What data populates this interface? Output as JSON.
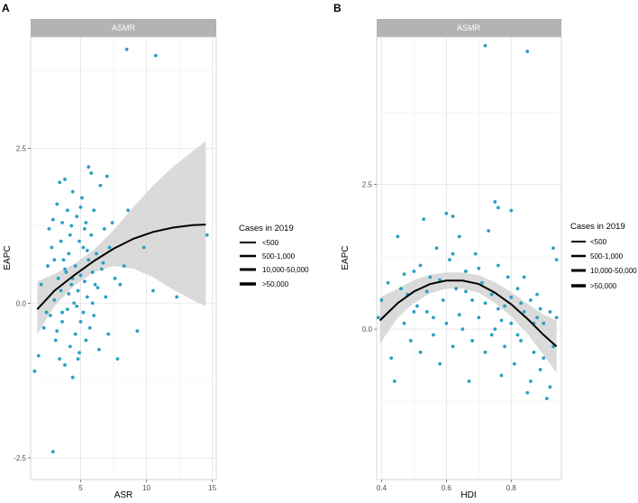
{
  "panels": [
    {
      "letter": "A",
      "strip_title": "ASMR",
      "xlabel": "ASR",
      "ylabel": "EAPC",
      "legend": {
        "title": "Cases in 2019",
        "entries": [
          "<500",
          "500-1,000",
          "10,000-50,000",
          ">50,000"
        ]
      }
    },
    {
      "letter": "B",
      "strip_title": "ASMR",
      "xlabel": "HDI",
      "ylabel": "EAPC",
      "legend": {
        "title": "Cases in 2019",
        "entries": [
          "<500",
          "500-1,000",
          "10,000-50,000",
          ">50,000"
        ]
      }
    }
  ],
  "chart_data": [
    {
      "type": "scatter",
      "title": "ASMR",
      "xlabel": "ASR",
      "ylabel": "EAPC",
      "xlim": [
        1.2,
        15.3
      ],
      "ylim": [
        -2.85,
        4.3
      ],
      "xticks": [
        5,
        10,
        15
      ],
      "yticks": [
        -2.5,
        0,
        2.5
      ],
      "point_color": "#2a9fc4",
      "ribbon_color": "#d4d4d4",
      "line_color": "#000000",
      "points": [
        [
          8.5,
          4.1
        ],
        [
          10.7,
          4.0
        ],
        [
          2.9,
          -2.4
        ],
        [
          14.6,
          1.1
        ],
        [
          12.3,
          0.1
        ],
        [
          1.5,
          -1.1
        ],
        [
          1.8,
          -0.85
        ],
        [
          2.0,
          0.3
        ],
        [
          2.2,
          -0.4
        ],
        [
          2.5,
          0.6
        ],
        [
          2.6,
          1.2
        ],
        [
          2.7,
          -0.2
        ],
        [
          2.8,
          0.9
        ],
        [
          3.0,
          0.05
        ],
        [
          3.1,
          -0.6
        ],
        [
          3.2,
          1.6
        ],
        [
          3.3,
          0.4
        ],
        [
          3.4,
          -0.9
        ],
        [
          3.4,
          1.95
        ],
        [
          3.5,
          0.2
        ],
        [
          3.6,
          -0.3
        ],
        [
          3.6,
          1.3
        ],
        [
          3.7,
          0.7
        ],
        [
          3.8,
          -1.0
        ],
        [
          3.8,
          2.0
        ],
        [
          3.9,
          0.5
        ],
        [
          4.0,
          -0.1
        ],
        [
          4.0,
          1.5
        ],
        [
          4.1,
          0.8
        ],
        [
          4.2,
          -0.7
        ],
        [
          4.2,
          1.1
        ],
        [
          4.3,
          0.3
        ],
        [
          4.4,
          -1.2
        ],
        [
          4.4,
          1.8
        ],
        [
          4.5,
          0.0
        ],
        [
          4.6,
          0.6
        ],
        [
          4.6,
          -0.5
        ],
        [
          4.7,
          1.4
        ],
        [
          4.8,
          0.2
        ],
        [
          4.8,
          -0.9
        ],
        [
          4.9,
          1.0
        ],
        [
          5.0,
          -0.3
        ],
        [
          5.0,
          0.45
        ],
        [
          5.1,
          1.7
        ],
        [
          5.2,
          -0.15
        ],
        [
          5.2,
          0.9
        ],
        [
          5.3,
          0.35
        ],
        [
          5.4,
          -0.6
        ],
        [
          5.4,
          1.3
        ],
        [
          5.5,
          0.1
        ],
        [
          5.6,
          2.2
        ],
        [
          5.6,
          0.7
        ],
        [
          5.7,
          -0.4
        ],
        [
          5.8,
          2.1
        ],
        [
          5.8,
          1.1
        ],
        [
          5.9,
          0.5
        ],
        [
          6.0,
          -0.2
        ],
        [
          6.0,
          1.5
        ],
        [
          6.2,
          0.8
        ],
        [
          6.3,
          0.25
        ],
        [
          6.4,
          -0.75
        ],
        [
          6.5,
          1.9
        ],
        [
          6.6,
          0.55
        ],
        [
          6.8,
          1.2
        ],
        [
          6.9,
          0.1
        ],
        [
          7.0,
          2.05
        ],
        [
          7.1,
          -0.5
        ],
        [
          7.2,
          0.9
        ],
        [
          7.4,
          1.3
        ],
        [
          7.6,
          0.4
        ],
        [
          7.8,
          -0.9
        ],
        [
          8.0,
          0.3
        ],
        [
          8.3,
          0.6
        ],
        [
          8.6,
          1.5
        ],
        [
          9.3,
          -0.45
        ],
        [
          9.8,
          0.9
        ],
        [
          10.5,
          0.2
        ],
        [
          3.0,
          0.7
        ],
        [
          3.5,
          1.0
        ],
        [
          4.1,
          0.15
        ],
        [
          4.7,
          -0.05
        ],
        [
          5.3,
          1.2
        ],
        [
          5.9,
          0.0
        ],
        [
          3.8,
          0.55
        ],
        [
          4.4,
          0.4
        ],
        [
          2.4,
          -0.15
        ],
        [
          3.2,
          -0.45
        ],
        [
          4.9,
          -0.8
        ],
        [
          5.5,
          0.85
        ],
        [
          6.1,
          0.3
        ],
        [
          3.6,
          -0.15
        ],
        [
          4.3,
          1.25
        ],
        [
          5.0,
          1.55
        ],
        [
          2.9,
          1.35
        ],
        [
          6.7,
          0.65
        ]
      ],
      "fit": {
        "x": [
          1.7,
          3,
          4.5,
          6,
          7.5,
          9,
          10.5,
          12,
          13.5,
          14.5
        ],
        "y": [
          -0.1,
          0.2,
          0.45,
          0.68,
          0.88,
          1.04,
          1.15,
          1.22,
          1.26,
          1.27
        ],
        "lower": [
          -0.5,
          -0.05,
          0.28,
          0.5,
          0.6,
          0.56,
          0.42,
          0.22,
          0.05,
          -0.05
        ],
        "upper": [
          0.35,
          0.47,
          0.63,
          0.86,
          1.18,
          1.55,
          1.9,
          2.2,
          2.45,
          2.62
        ]
      }
    },
    {
      "type": "scatter",
      "title": "ASMR",
      "xlabel": "HDI",
      "ylabel": "EAPC",
      "xlim": [
        0.385,
        0.955
      ],
      "ylim": [
        -2.6,
        5.05
      ],
      "xticks": [
        0.4,
        0.6,
        0.8
      ],
      "yticks": [
        0,
        2.5
      ],
      "point_color": "#2a9fc4",
      "ribbon_color": "#d4d4d4",
      "line_color": "#000000",
      "points": [
        [
          0.72,
          4.9
        ],
        [
          0.85,
          4.8
        ],
        [
          0.39,
          0.2
        ],
        [
          0.4,
          0.5
        ],
        [
          0.42,
          0.8
        ],
        [
          0.43,
          -0.5
        ],
        [
          0.44,
          -0.9
        ],
        [
          0.45,
          1.6
        ],
        [
          0.46,
          0.7
        ],
        [
          0.47,
          0.1
        ],
        [
          0.48,
          0.6
        ],
        [
          0.49,
          -0.2
        ],
        [
          0.5,
          1.0
        ],
        [
          0.51,
          0.4
        ],
        [
          0.52,
          -0.4
        ],
        [
          0.53,
          1.9
        ],
        [
          0.54,
          0.3
        ],
        [
          0.55,
          0.9
        ],
        [
          0.56,
          0.2
        ],
        [
          0.57,
          1.4
        ],
        [
          0.58,
          -0.6
        ],
        [
          0.59,
          0.5
        ],
        [
          0.6,
          2.0
        ],
        [
          0.6,
          0.1
        ],
        [
          0.61,
          1.2
        ],
        [
          0.62,
          1.95
        ],
        [
          0.62,
          -0.3
        ],
        [
          0.63,
          0.7
        ],
        [
          0.64,
          1.6
        ],
        [
          0.65,
          0.0
        ],
        [
          0.66,
          1.0
        ],
        [
          0.67,
          -0.9
        ],
        [
          0.68,
          0.5
        ],
        [
          0.69,
          1.3
        ],
        [
          0.7,
          0.2
        ],
        [
          0.71,
          0.8
        ],
        [
          0.72,
          -0.4
        ],
        [
          0.73,
          1.7
        ],
        [
          0.74,
          0.6
        ],
        [
          0.75,
          2.2
        ],
        [
          0.75,
          0.0
        ],
        [
          0.76,
          2.1
        ],
        [
          0.76,
          1.1
        ],
        [
          0.77,
          -0.8
        ],
        [
          0.78,
          0.4
        ],
        [
          0.79,
          0.9
        ],
        [
          0.8,
          2.05
        ],
        [
          0.8,
          0.1
        ],
        [
          0.81,
          -0.6
        ],
        [
          0.82,
          0.7
        ],
        [
          0.83,
          -0.2
        ],
        [
          0.84,
          0.3
        ],
        [
          0.85,
          -1.1
        ],
        [
          0.86,
          0.5
        ],
        [
          0.87,
          -0.4
        ],
        [
          0.88,
          0.2
        ],
        [
          0.89,
          -0.7
        ],
        [
          0.9,
          0.1
        ],
        [
          0.91,
          -1.2
        ],
        [
          0.92,
          0.3
        ],
        [
          0.93,
          1.4
        ],
        [
          0.93,
          -0.3
        ],
        [
          0.94,
          1.2
        ],
        [
          0.94,
          0.2
        ],
        [
          0.92,
          -1.0
        ],
        [
          0.9,
          -0.5
        ],
        [
          0.88,
          0.6
        ],
        [
          0.86,
          -0.9
        ],
        [
          0.84,
          0.9
        ],
        [
          0.82,
          -0.1
        ],
        [
          0.8,
          0.55
        ],
        [
          0.78,
          -0.3
        ],
        [
          0.76,
          0.35
        ],
        [
          0.74,
          -0.1
        ],
        [
          0.72,
          0.45
        ],
        [
          0.7,
          1.05
        ],
        [
          0.68,
          -0.2
        ],
        [
          0.66,
          0.65
        ],
        [
          0.64,
          0.25
        ],
        [
          0.62,
          1.3
        ],
        [
          0.58,
          0.85
        ],
        [
          0.56,
          -0.1
        ],
        [
          0.54,
          0.65
        ],
        [
          0.52,
          1.1
        ],
        [
          0.5,
          0.3
        ],
        [
          0.47,
          0.95
        ],
        [
          0.77,
          0.15
        ],
        [
          0.83,
          0.45
        ],
        [
          0.87,
          0.1
        ],
        [
          0.89,
          0.35
        ]
      ],
      "fit": {
        "x": [
          0.395,
          0.45,
          0.5,
          0.55,
          0.6,
          0.65,
          0.7,
          0.75,
          0.8,
          0.85,
          0.9,
          0.94
        ],
        "y": [
          0.15,
          0.45,
          0.65,
          0.78,
          0.84,
          0.84,
          0.78,
          0.63,
          0.43,
          0.18,
          -0.1,
          -0.3
        ],
        "lower": [
          -0.25,
          0.2,
          0.45,
          0.62,
          0.7,
          0.7,
          0.63,
          0.45,
          0.22,
          -0.08,
          -0.45,
          -0.75
        ],
        "upper": [
          0.55,
          0.7,
          0.85,
          0.94,
          0.98,
          0.98,
          0.93,
          0.81,
          0.64,
          0.44,
          0.25,
          0.15
        ]
      }
    }
  ]
}
